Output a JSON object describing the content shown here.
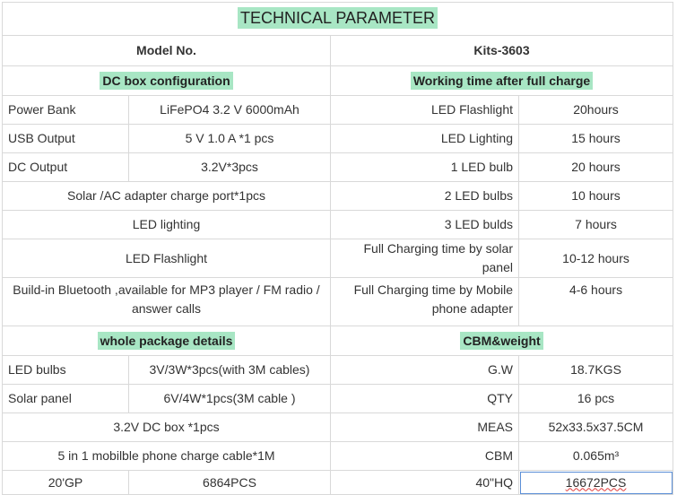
{
  "title": "TECHNICAL PARAMETER",
  "header": {
    "model_label": "Model No.",
    "model_value": "Kits-3603"
  },
  "sections": {
    "dc_box": "DC box configuration",
    "working_time": "Working time after full charge",
    "package": "whole package details",
    "cbm": "CBM&weight"
  },
  "dc_rows": [
    {
      "label": "Power Bank",
      "value": "LiFePO4 3.2 V 6000mAh"
    },
    {
      "label": "USB Output",
      "value": "5 V 1.0 A *1 pcs"
    },
    {
      "label": "DC Output",
      "value": "3.2V*3pcs"
    },
    {
      "text": "Solar /AC adapter charge port*1pcs"
    },
    {
      "text": "LED lighting"
    },
    {
      "text": "LED Flashlight"
    },
    {
      "text": "Build-in Bluetooth ,available for MP3 player / FM radio / answer calls"
    }
  ],
  "work_rows": [
    {
      "label": "LED Flashlight",
      "value": "20hours"
    },
    {
      "label": "LED Lighting",
      "value": "15 hours"
    },
    {
      "label": "1 LED bulb",
      "value": "20 hours"
    },
    {
      "label": "2 LED bulbs",
      "value": "10 hours"
    },
    {
      "label": "3 LED bulds",
      "value": "7 hours"
    },
    {
      "label": "Full Charging time by solar panel",
      "value": "10-12 hours"
    },
    {
      "label": "Full Charging time by Mobile phone adapter",
      "value": "4-6 hours"
    }
  ],
  "package_rows": [
    {
      "label": "LED bulbs",
      "value": "3V/3W*3pcs(with 3M cables)"
    },
    {
      "label": "Solar panel",
      "value": "6V/4W*1pcs(3M cable )"
    },
    {
      "text": "3.2V DC box *1pcs"
    },
    {
      "text": "5 in 1 mobilble phone charge cable*1M"
    },
    {
      "label": "20'GP",
      "value": "6864PCS"
    }
  ],
  "cbm_rows": [
    {
      "label": "G.W",
      "value": "18.7KGS"
    },
    {
      "label": "QTY",
      "value": "16 pcs"
    },
    {
      "label": "MEAS",
      "value": "52x33.5x37.5CM"
    },
    {
      "label": "CBM",
      "value": "0.065m³"
    },
    {
      "label": "40\"HQ",
      "value": "16672PCS"
    }
  ]
}
